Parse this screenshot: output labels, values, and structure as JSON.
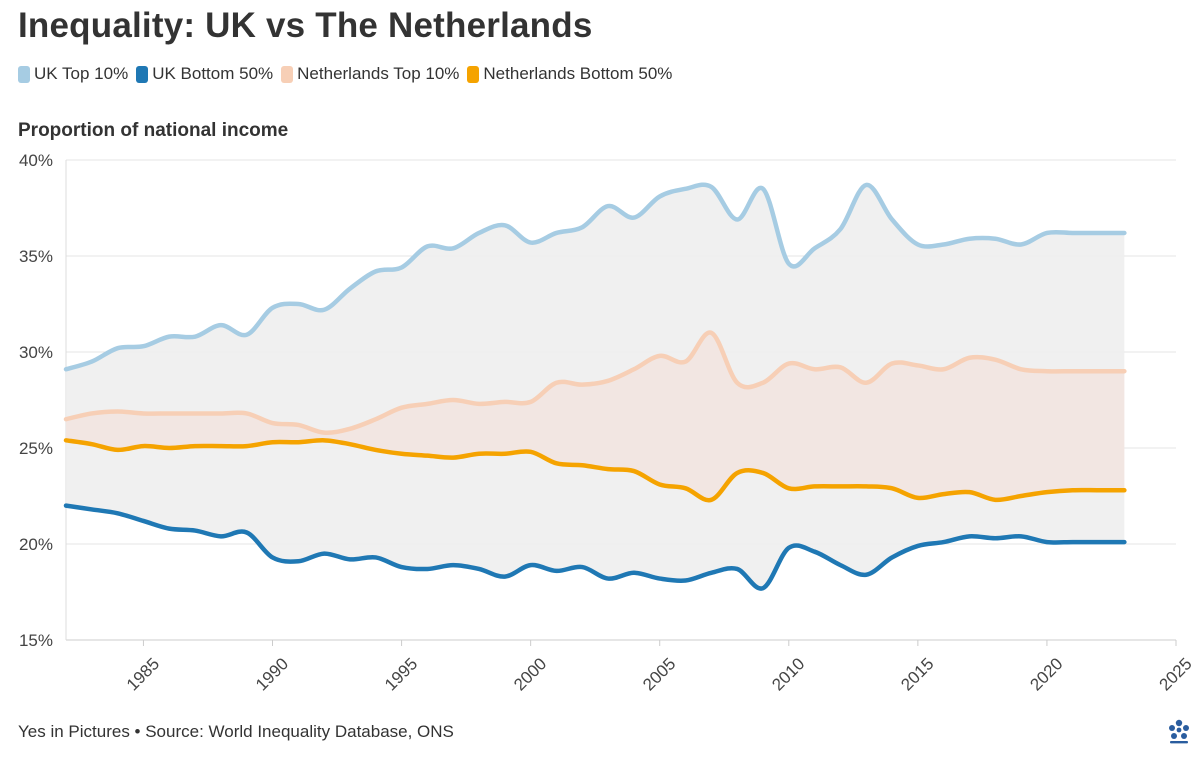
{
  "title": "Inequality: UK vs The Netherlands",
  "legend": [
    {
      "label": "UK Top 10%",
      "color": "#a6cce3"
    },
    {
      "label": "UK Bottom 50%",
      "color": "#1f78b4"
    },
    {
      "label": "Netherlands Top 10%",
      "color": "#f7cfb6"
    },
    {
      "label": "Netherlands Bottom 50%",
      "color": "#f5a300"
    }
  ],
  "subtitle": "Proportion of national income",
  "footer": "Yes in Pictures • Source: World Inequality Database, ONS",
  "chart_data": {
    "type": "line",
    "title": "Inequality: UK vs The Netherlands",
    "ylabel": "Proportion of national income",
    "xlabel": "",
    "xlim": [
      1982,
      2025
    ],
    "ylim": [
      15,
      40
    ],
    "yticks": [
      15,
      20,
      25,
      30,
      35,
      40
    ],
    "yticklabels": [
      "15%",
      "20%",
      "25%",
      "30%",
      "35%",
      "40%"
    ],
    "xticks": [
      1985,
      1990,
      1995,
      2000,
      2005,
      2010,
      2015,
      2020,
      2025
    ],
    "xticklabels": [
      "1985",
      "1990",
      "1995",
      "2000",
      "2005",
      "2010",
      "2015",
      "2020",
      "2025"
    ],
    "x": [
      1982,
      1983,
      1984,
      1985,
      1986,
      1987,
      1988,
      1989,
      1990,
      1991,
      1992,
      1993,
      1994,
      1995,
      1996,
      1997,
      1998,
      1999,
      2000,
      2001,
      2002,
      2003,
      2004,
      2005,
      2006,
      2007,
      2008,
      2009,
      2010,
      2011,
      2012,
      2013,
      2014,
      2015,
      2016,
      2017,
      2018,
      2019,
      2020,
      2021,
      2022,
      2023
    ],
    "series": [
      {
        "name": "UK Top 10%",
        "color": "#a6cce3",
        "values": [
          29.1,
          29.5,
          30.2,
          30.3,
          30.8,
          30.8,
          31.4,
          30.9,
          32.3,
          32.5,
          32.2,
          33.3,
          34.2,
          34.4,
          35.5,
          35.4,
          36.2,
          36.6,
          35.7,
          36.2,
          36.5,
          37.6,
          37.0,
          38.1,
          38.5,
          38.6,
          36.9,
          38.5,
          34.6,
          35.4,
          36.4,
          38.7,
          36.9,
          35.6,
          35.6,
          35.9,
          35.9,
          35.6,
          36.2,
          36.2,
          36.2,
          36.2
        ]
      },
      {
        "name": "UK Bottom 50%",
        "color": "#1f78b4",
        "values": [
          22.0,
          21.8,
          21.6,
          21.2,
          20.8,
          20.7,
          20.4,
          20.6,
          19.3,
          19.1,
          19.5,
          19.2,
          19.3,
          18.8,
          18.7,
          18.9,
          18.7,
          18.3,
          18.9,
          18.6,
          18.8,
          18.2,
          18.5,
          18.2,
          18.1,
          18.5,
          18.7,
          17.7,
          19.8,
          19.6,
          18.9,
          18.4,
          19.3,
          19.9,
          20.1,
          20.4,
          20.3,
          20.4,
          20.1,
          20.1,
          20.1,
          20.1
        ]
      },
      {
        "name": "Netherlands Top 10%",
        "color": "#f7cfb6",
        "values": [
          26.5,
          26.8,
          26.9,
          26.8,
          26.8,
          26.8,
          26.8,
          26.8,
          26.3,
          26.2,
          25.8,
          26.0,
          26.5,
          27.1,
          27.3,
          27.5,
          27.3,
          27.4,
          27.4,
          28.4,
          28.3,
          28.5,
          29.1,
          29.8,
          29.5,
          31.0,
          28.4,
          28.4,
          29.4,
          29.1,
          29.2,
          28.4,
          29.4,
          29.3,
          29.1,
          29.7,
          29.6,
          29.1,
          29.0,
          29.0,
          29.0,
          29.0
        ]
      },
      {
        "name": "Netherlands Bottom 50%",
        "color": "#f5a300",
        "values": [
          25.4,
          25.2,
          24.9,
          25.1,
          25.0,
          25.1,
          25.1,
          25.1,
          25.3,
          25.3,
          25.4,
          25.2,
          24.9,
          24.7,
          24.6,
          24.5,
          24.7,
          24.7,
          24.8,
          24.2,
          24.1,
          23.9,
          23.8,
          23.1,
          22.9,
          22.3,
          23.7,
          23.7,
          22.9,
          23.0,
          23.0,
          23.0,
          22.9,
          22.4,
          22.6,
          22.7,
          22.3,
          22.5,
          22.7,
          22.8,
          22.8,
          22.8
        ]
      }
    ],
    "bands": [
      {
        "between": [
          "UK Top 10%",
          "UK Bottom 50%"
        ],
        "color": "#eeeeee"
      },
      {
        "between": [
          "Netherlands Top 10%",
          "Netherlands Bottom 50%"
        ],
        "color": "#f3e3dd"
      }
    ]
  }
}
